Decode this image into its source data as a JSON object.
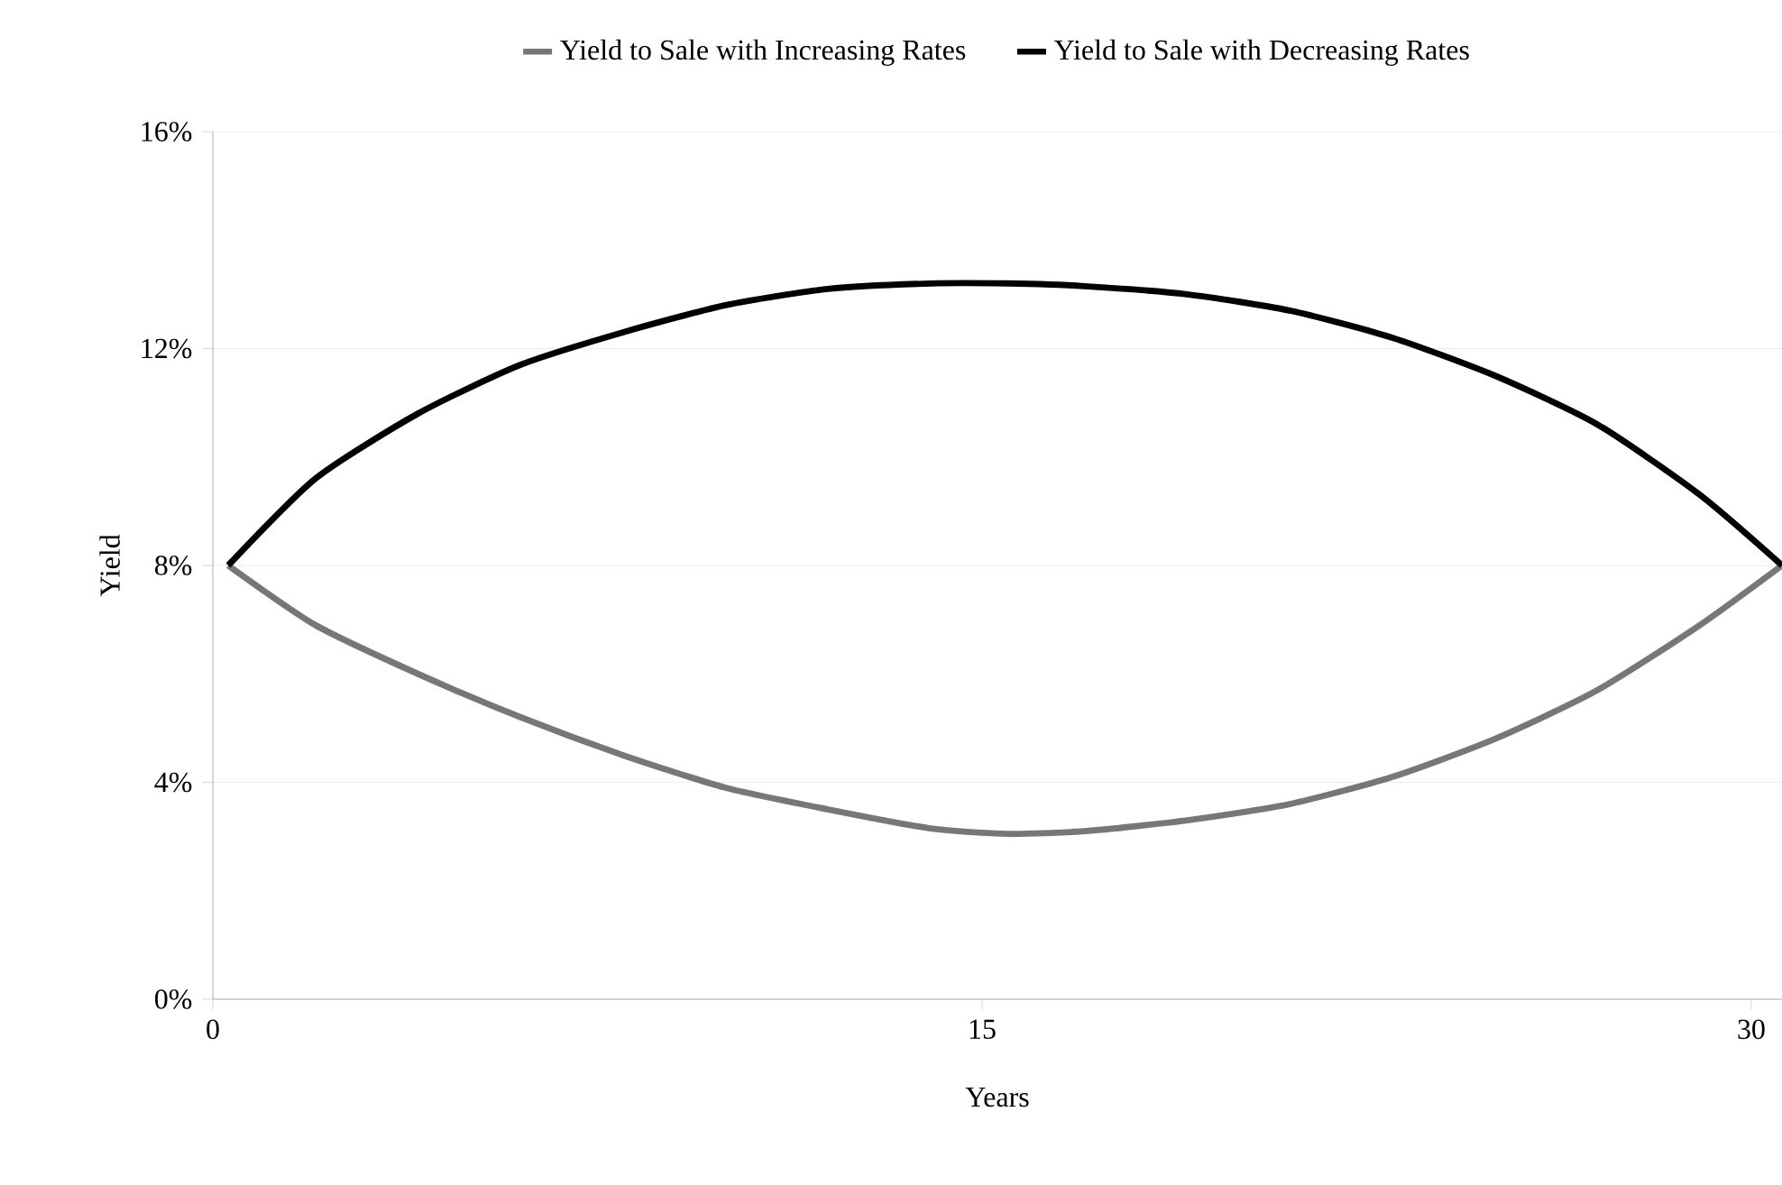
{
  "chart_data": {
    "type": "line",
    "xlabel": "Years",
    "ylabel": "Yield",
    "xlim": [
      0,
      30.6
    ],
    "xticks": [
      0,
      15,
      30
    ],
    "ylim": [
      0,
      16
    ],
    "yticks": [
      {
        "value": 0,
        "label": "0%"
      },
      {
        "value": 4,
        "label": "4%"
      },
      {
        "value": 8,
        "label": "8%"
      },
      {
        "value": 12,
        "label": "12%"
      },
      {
        "value": 16,
        "label": "16%"
      }
    ],
    "grid": "y",
    "legend": "top",
    "marker": "none",
    "line_style": "solid",
    "series": [
      {
        "name": "Yield to Sale with Increasing Rates",
        "color": "#777777",
        "x": [
          0.3,
          2,
          4,
          6,
          8,
          10,
          12,
          14,
          15.5,
          17,
          19,
          21,
          23,
          25,
          27,
          29,
          30.6
        ],
        "values": [
          8,
          6.9,
          6.0,
          5.2,
          4.5,
          3.9,
          3.5,
          3.15,
          3.05,
          3.1,
          3.3,
          3.6,
          4.1,
          4.8,
          5.7,
          6.9,
          8
        ]
      },
      {
        "name": "Yield to Sale with Decreasing Rates",
        "color": "#000000",
        "x": [
          0.3,
          2,
          4,
          6,
          8,
          10,
          12,
          14,
          15.5,
          17,
          19,
          21,
          23,
          25,
          27,
          29,
          30.6
        ],
        "values": [
          8,
          9.6,
          10.8,
          11.7,
          12.3,
          12.8,
          13.1,
          13.2,
          13.2,
          13.15,
          13.0,
          12.7,
          12.2,
          11.5,
          10.6,
          9.3,
          8
        ]
      }
    ]
  }
}
